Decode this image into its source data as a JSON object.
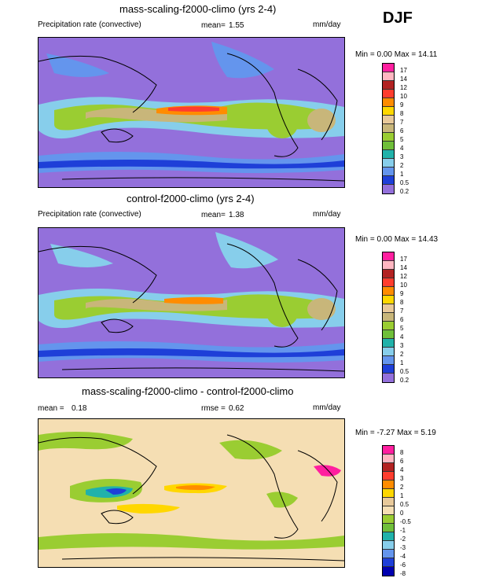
{
  "season": "DJF",
  "panels": [
    {
      "title": "mass-scaling-f2000-climo (yrs 2-4)",
      "left_label": "Precipitation rate (convective)",
      "stat_label": "mean=",
      "stat_value": "1.55",
      "units": "mm/day",
      "minmax": "Min =   0.00 Max =  14.11",
      "colorbar": {
        "levels": [
          "17",
          "14",
          "12",
          "10",
          "9",
          "8",
          "7",
          "6",
          "5",
          "4",
          "3",
          "2",
          "1",
          "0.5",
          "0.2"
        ],
        "colors": [
          "#ff1f9f",
          "#ffb6c1",
          "#b22222",
          "#ff3d2e",
          "#ff8c00",
          "#ffd700",
          "#e8c99a",
          "#c8b67a",
          "#9acd32",
          "#6fbf3a",
          "#20b2aa",
          "#87ceeb",
          "#6495ed",
          "#1e3fd8",
          "#9370db"
        ]
      }
    },
    {
      "title": "control-f2000-climo (yrs 2-4)",
      "left_label": "Precipitation rate (convective)",
      "stat_label": "mean=",
      "stat_value": "1.38",
      "units": "mm/day",
      "minmax": "Min =   0.00 Max =  14.43",
      "colorbar": {
        "levels": [
          "17",
          "14",
          "12",
          "10",
          "9",
          "8",
          "7",
          "6",
          "5",
          "4",
          "3",
          "2",
          "1",
          "0.5",
          "0.2"
        ],
        "colors": [
          "#ff1f9f",
          "#ffb6c1",
          "#b22222",
          "#ff3d2e",
          "#ff8c00",
          "#ffd700",
          "#e8c99a",
          "#c8b67a",
          "#9acd32",
          "#6fbf3a",
          "#20b2aa",
          "#87ceeb",
          "#6495ed",
          "#1e3fd8",
          "#9370db"
        ]
      }
    },
    {
      "title": "mass-scaling-f2000-climo - control-f2000-climo",
      "left_label": "mean =",
      "left_value": "0.18",
      "stat_label": "rmse =",
      "stat_value": "0.62",
      "units": "mm/day",
      "minmax": "Min =  -7.27 Max =   5.19",
      "colorbar": {
        "levels": [
          "8",
          "6",
          "4",
          "3",
          "2",
          "1",
          "0.5",
          "0",
          "-0.5",
          "-1",
          "-2",
          "-3",
          "-4",
          "-6",
          "-8"
        ],
        "colors": [
          "#ff1f9f",
          "#ffb6c1",
          "#b22222",
          "#ff3d2e",
          "#ff8c00",
          "#ffd700",
          "#e8c99a",
          "#f5deb3",
          "#9acd32",
          "#6fbf3a",
          "#20b2aa",
          "#87ceeb",
          "#6495ed",
          "#1e3fd8",
          "#0000b0"
        ]
      }
    }
  ]
}
